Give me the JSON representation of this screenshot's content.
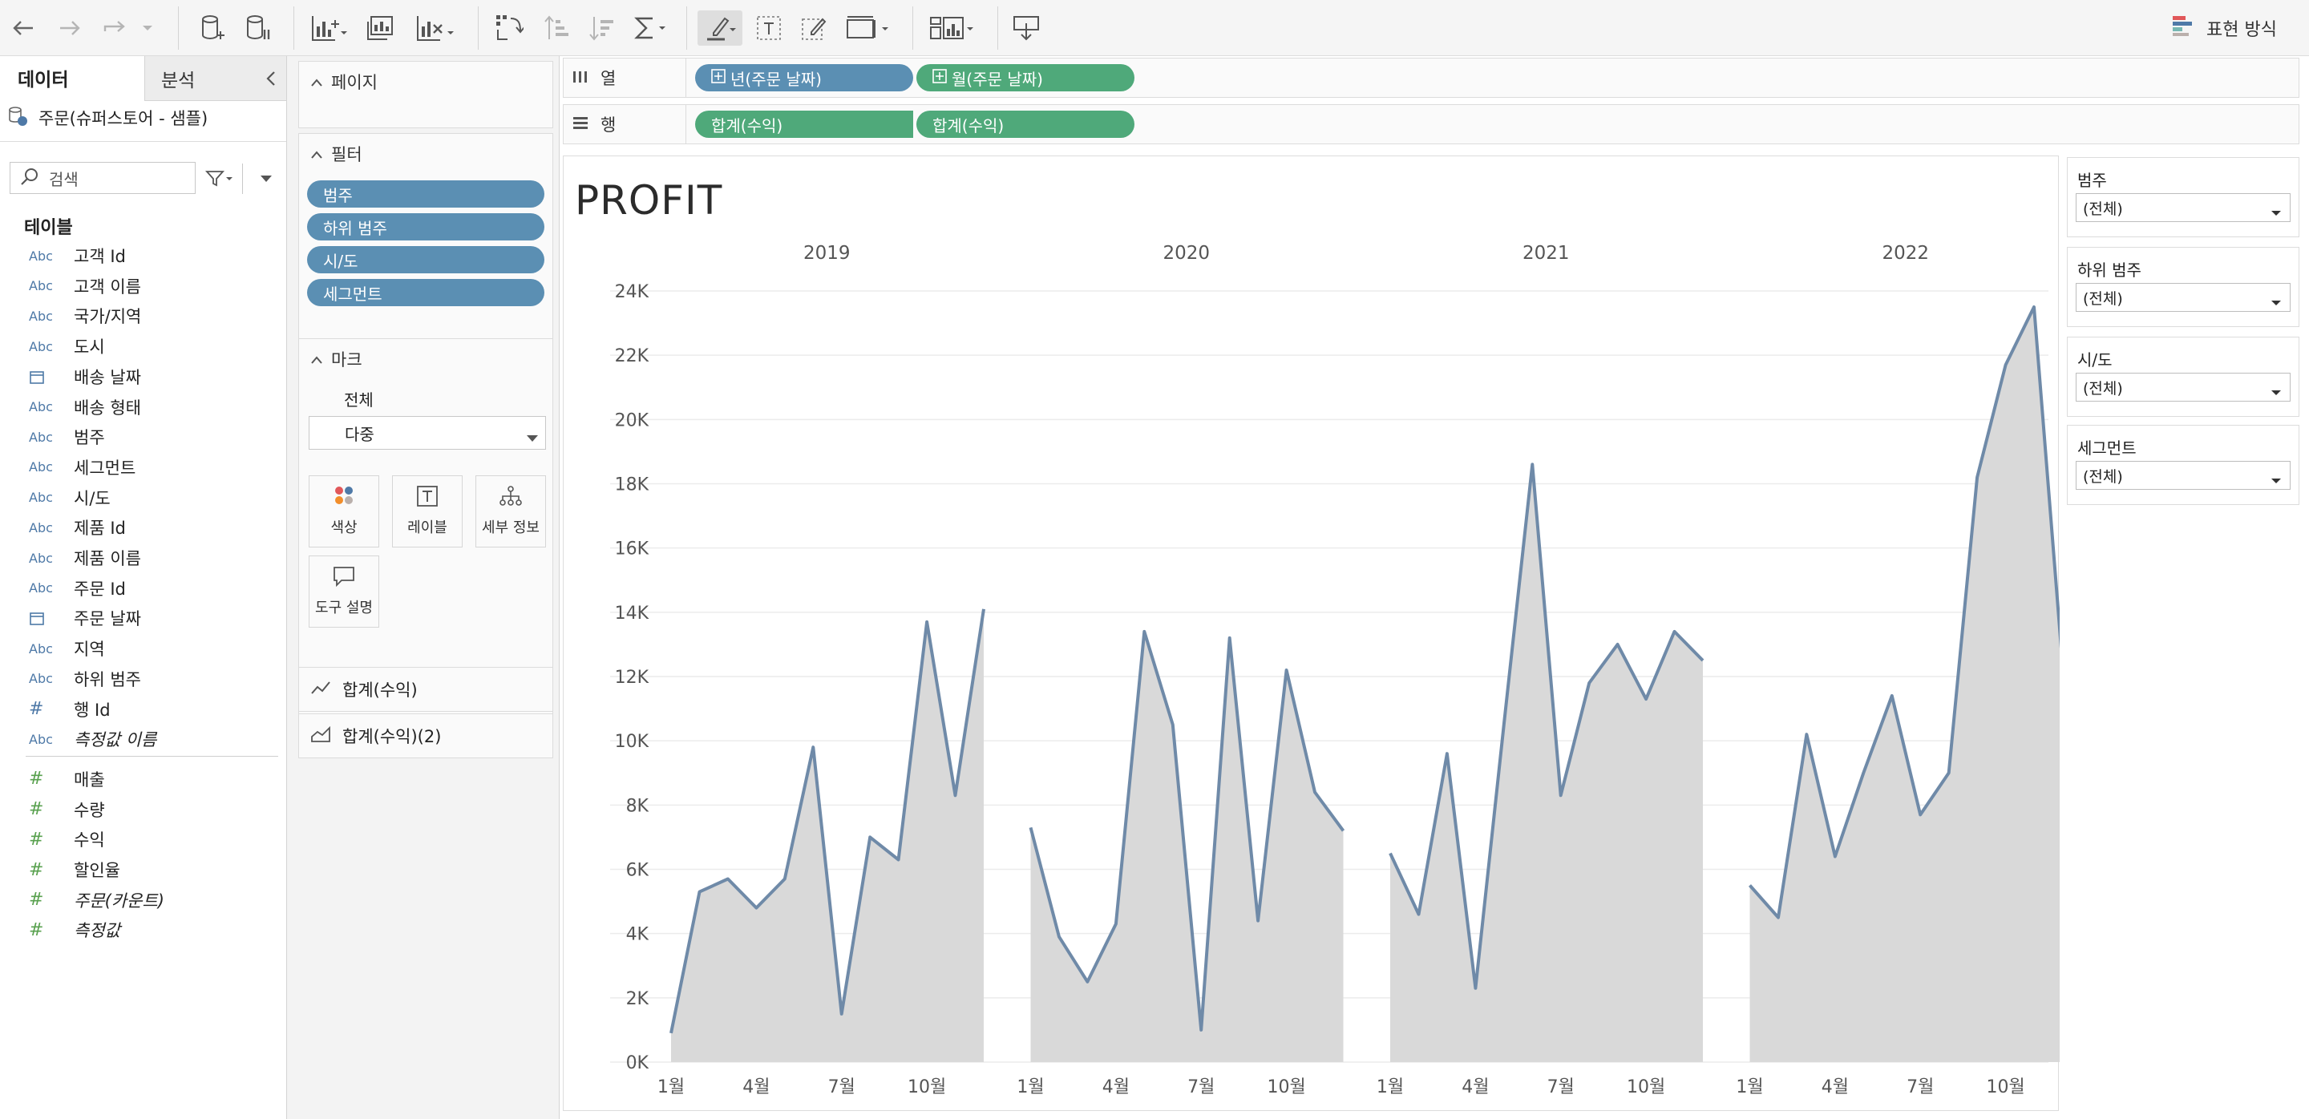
{
  "toolbar": {
    "buttons": [
      "back-icon",
      "forward-icon",
      "redo-icon",
      "dropdown-icon",
      "new-datasource-icon",
      "pause-updates-icon",
      "new-worksheet-icon",
      "duplicate-sheet-icon",
      "clear-sheet-icon",
      "swap-icon",
      "sort-ascending-icon",
      "sort-descending-icon",
      "totals-icon",
      "highlight-icon",
      "text-icon",
      "annotate-icon",
      "fit-icon",
      "show-me-icon",
      "present-icon"
    ],
    "show_me_label": "표현 방식"
  },
  "data_pane": {
    "tab_data": "데이터",
    "tab_analysis": "분석",
    "datasource": "주문(슈퍼스토어 - 샘플)",
    "search_placeholder": "검색",
    "tables_label": "테이블",
    "fields": [
      {
        "icon": "Abc",
        "name": "고객 Id"
      },
      {
        "icon": "Abc",
        "name": "고객 이름"
      },
      {
        "icon": "Abc",
        "name": "국가/지역"
      },
      {
        "icon": "Abc",
        "name": "도시"
      },
      {
        "icon": "calendar",
        "name": "배송 날짜"
      },
      {
        "icon": "Abc",
        "name": "배송 형태"
      },
      {
        "icon": "Abc",
        "name": "범주"
      },
      {
        "icon": "Abc",
        "name": "세그먼트"
      },
      {
        "icon": "Abc",
        "name": "시/도"
      },
      {
        "icon": "Abc",
        "name": "제품 Id"
      },
      {
        "icon": "Abc",
        "name": "제품 이름"
      },
      {
        "icon": "Abc",
        "name": "주문 Id"
      },
      {
        "icon": "calendar",
        "name": "주문 날짜"
      },
      {
        "icon": "Abc",
        "name": "지역"
      },
      {
        "icon": "Abc",
        "name": "하위 범주"
      },
      {
        "icon": "#",
        "name": "행 Id"
      },
      {
        "icon": "Abc",
        "name": "측정값 이름",
        "italic": true
      }
    ],
    "measures": [
      {
        "icon": "#",
        "name": "매출"
      },
      {
        "icon": "#",
        "name": "수량"
      },
      {
        "icon": "#",
        "name": "수익"
      },
      {
        "icon": "#",
        "name": "할인율"
      },
      {
        "icon": "#",
        "name": "주문(카운트)",
        "italic": true
      },
      {
        "icon": "#",
        "name": "측정값",
        "italic": true
      }
    ]
  },
  "cards": {
    "pages_title": "페이지",
    "filters_title": "필터",
    "filters": [
      "범주",
      "하위 범주",
      "시/도",
      "세그먼트"
    ],
    "marks_title": "마크",
    "marks_all": "전체",
    "marks_type": "다중",
    "mark_buttons": [
      "색상",
      "레이블",
      "세부 정보",
      "도구 설명"
    ],
    "measure_rows": [
      "합계(수익)",
      "합계(수익)(2)"
    ]
  },
  "shelves": {
    "columns_label": "열",
    "rows_label": "행",
    "columns": [
      "년(주문 날짜)",
      "월(주문 날짜)"
    ],
    "rows": [
      "합계(수익)",
      "합계(수익)"
    ]
  },
  "quick_filters": [
    {
      "title": "범주",
      "value": "(전체)"
    },
    {
      "title": "하위 범주",
      "value": "(전체)"
    },
    {
      "title": "시/도",
      "value": "(전체)"
    },
    {
      "title": "세그먼트",
      "value": "(전체)"
    }
  ],
  "chart_data": {
    "type": "area",
    "title": "PROFIT",
    "panes": [
      "2019",
      "2020",
      "2021",
      "2022"
    ],
    "x_tick_labels": [
      "1월",
      "4월",
      "7월",
      "10월"
    ],
    "y_ticks": [
      "0K",
      "2K",
      "4K",
      "6K",
      "8K",
      "10K",
      "12K",
      "14K",
      "16K",
      "18K",
      "20K",
      "22K",
      "24K"
    ],
    "ylim": [
      0,
      24000
    ],
    "grid": true,
    "colors": {
      "line": "#6f8aa8",
      "area": "#d9d9d9"
    },
    "series": [
      {
        "year": "2019",
        "values": [
          900,
          5300,
          5700,
          4800,
          5700,
          9800,
          1500,
          7000,
          6300,
          13700,
          8300,
          14100
        ]
      },
      {
        "year": "2020",
        "values": [
          7300,
          3900,
          2500,
          4300,
          13400,
          10500,
          1000,
          13200,
          4400,
          12200,
          8400,
          7200
        ]
      },
      {
        "year": "2021",
        "values": [
          6500,
          4600,
          9600,
          2300,
          10500,
          18600,
          8300,
          11800,
          13000,
          11300,
          13400,
          12500
        ]
      },
      {
        "year": "2022",
        "values": [
          5500,
          4500,
          10200,
          6400,
          9000,
          11400,
          7700,
          9000,
          18200,
          21700,
          23500,
          12400
        ]
      }
    ]
  }
}
